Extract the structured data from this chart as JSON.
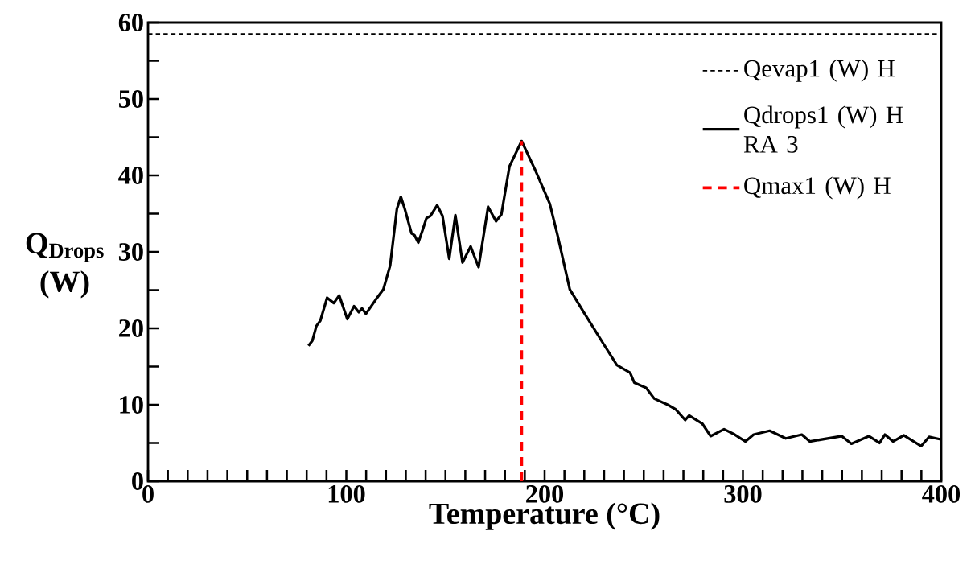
{
  "chart_data": {
    "type": "line",
    "xlabel": "Temperature (°C)",
    "ylabel": "Q$_{Drops}$ (W)",
    "xlim": [
      0,
      400
    ],
    "ylim": [
      0,
      60
    ],
    "xticks": [
      0,
      {
        "value": 10,
        "label": null
      },
      {
        "value": 20,
        "label": null
      },
      {
        "value": 30,
        "label": null
      },
      {
        "value": 40,
        "label": null
      },
      {
        "value": 50,
        "label": null
      },
      {
        "value": 60,
        "label": null
      },
      {
        "value": 70,
        "label": null
      },
      {
        "value": 80,
        "label": null
      },
      {
        "value": 90,
        "label": null
      },
      100,
      {
        "value": 110,
        "label": null
      },
      {
        "value": 120,
        "label": null
      },
      {
        "value": 130,
        "label": null
      },
      {
        "value": 140,
        "label": null
      },
      {
        "value": 150,
        "label": null
      },
      {
        "value": 160,
        "label": null
      },
      {
        "value": 170,
        "label": null
      },
      {
        "value": 180,
        "label": null
      },
      {
        "value": 190,
        "label": null
      },
      200,
      {
        "value": 210,
        "label": null
      },
      {
        "value": 220,
        "label": null
      },
      {
        "value": 230,
        "label": null
      },
      {
        "value": 240,
        "label": null
      },
      {
        "value": 250,
        "label": null
      },
      {
        "value": 260,
        "label": null
      },
      {
        "value": 270,
        "label": null
      },
      {
        "value": 280,
        "label": null
      },
      {
        "value": 290,
        "label": null
      },
      300,
      {
        "value": 310,
        "label": null
      },
      {
        "value": 320,
        "label": null
      },
      {
        "value": 330,
        "label": null
      },
      {
        "value": 340,
        "label": null
      },
      {
        "value": 350,
        "label": null
      },
      {
        "value": 360,
        "label": null
      },
      {
        "value": 370,
        "label": null
      },
      {
        "value": 380,
        "label": null
      },
      {
        "value": 390,
        "label": null
      },
      400
    ],
    "yticks": [
      0,
      {
        "value": 5,
        "label": null
      },
      10,
      {
        "value": 15,
        "label": null
      },
      20,
      {
        "value": 25,
        "label": null
      },
      30,
      {
        "value": 35,
        "label": null
      },
      40,
      {
        "value": 45,
        "label": null
      },
      50,
      {
        "value": 55,
        "label": null
      },
      60
    ],
    "grid": false,
    "legend": "top right",
    "series": [
      {
        "name": "Qevap1 (W) H",
        "color": "#000000",
        "line_style": "dashed",
        "x": [
          0,
          400
        ],
        "values": [
          58.5,
          58.5
        ]
      },
      {
        "name": "Qdrops1 (W) H RA 3",
        "color": "#000000",
        "line_style": "solid",
        "x": [
          80.9,
          82.9,
          84.9,
          86.9,
          90.3,
          93.7,
          96.4,
          100.5,
          103.9,
          106.3,
          107.9,
          109.9,
          114.7,
          118.7,
          122.1,
          125.5,
          127.5,
          129.5,
          132.9,
          134.3,
          136.3,
          138.4,
          140.4,
          142.4,
          145.8,
          148.5,
          151.9,
          155.0,
          158.6,
          162.7,
          166.7,
          171.5,
          175.5,
          178.2,
          182.3,
          188.4,
          195.1,
          202.6,
          206.6,
          212.7,
          220.2,
          229.6,
          236.4,
          243.1,
          245.2,
          251.2,
          255.3,
          262.1,
          266.1,
          270.9,
          272.9,
          279.6,
          283.7,
          290.5,
          295.9,
          301.3,
          305.4,
          313.5,
          321.6,
          329.7,
          333.7,
          349.9,
          354.7,
          363.5,
          368.9,
          371.6,
          375.7,
          381.1,
          389.9,
          393.9,
          399.3
        ],
        "values": [
          17.7,
          18.4,
          20.3,
          21.0,
          24.0,
          23.3,
          24.3,
          21.2,
          22.9,
          22.1,
          22.6,
          21.9,
          23.7,
          25.1,
          28.2,
          35.6,
          37.2,
          35.6,
          32.4,
          32.2,
          31.2,
          32.8,
          34.4,
          34.7,
          36.1,
          34.7,
          29.1,
          34.8,
          28.6,
          30.7,
          28.0,
          35.9,
          34.0,
          34.9,
          41.2,
          44.5,
          40.8,
          36.3,
          32.1,
          25.1,
          21.9,
          18.0,
          15.2,
          14.2,
          12.9,
          12.2,
          10.8,
          10.0,
          9.4,
          8.0,
          8.6,
          7.5,
          5.9,
          6.8,
          6.1,
          5.2,
          6.1,
          6.6,
          5.6,
          6.1,
          5.2,
          5.9,
          4.9,
          5.9,
          5.0,
          6.1,
          5.2,
          6.0,
          4.6,
          5.8,
          5.5
        ]
      },
      {
        "name": "Qmax1 (W) H",
        "color": "#ff0000",
        "line_style": "dashed",
        "x": [
          188.5,
          188.5
        ],
        "values": [
          0,
          44.5
        ]
      }
    ]
  }
}
